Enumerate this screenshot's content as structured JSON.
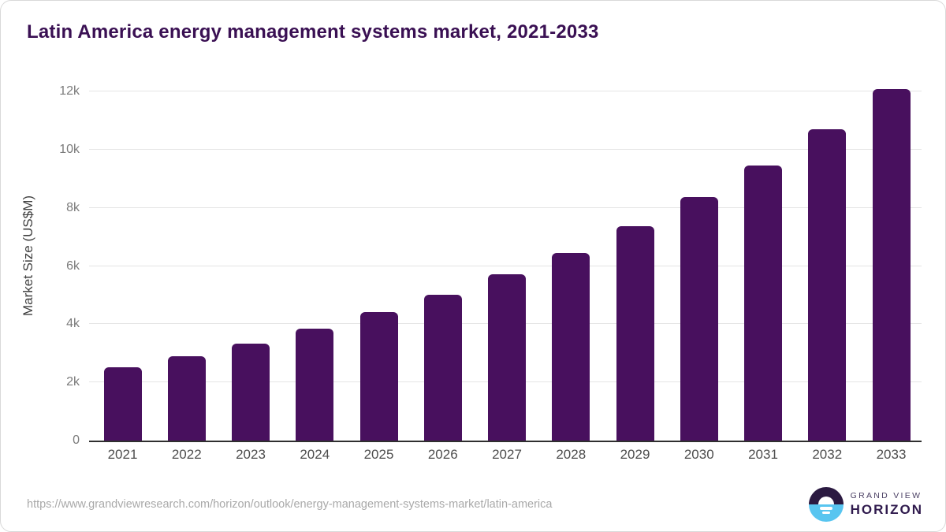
{
  "title": "Latin America energy management systems market, 2021-2033",
  "chart_data": {
    "type": "bar",
    "title": "Latin America energy management systems market, 2021-2033",
    "categories": [
      "2021",
      "2022",
      "2023",
      "2024",
      "2025",
      "2026",
      "2027",
      "2028",
      "2029",
      "2030",
      "2031",
      "2032",
      "2033"
    ],
    "values": [
      2520,
      2900,
      3330,
      3850,
      4420,
      5010,
      5720,
      6450,
      7370,
      8370,
      9470,
      10700,
      12100
    ],
    "xlabel": "",
    "ylabel": "Market Size (US$M)",
    "ylim": [
      0,
      12400
    ],
    "yticks": [
      0,
      2000,
      4000,
      6000,
      8000,
      10000,
      12000
    ],
    "ytick_labels": [
      "0",
      "2k",
      "4k",
      "6k",
      "8k",
      "10k",
      "12k"
    ],
    "grid": true,
    "legend": "none",
    "bar_color": "#48105e"
  },
  "colors": {
    "title_text": "#3a1053",
    "bar_fill": "#48105e",
    "axis_line": "#2f2f2f",
    "gridline": "#e5e5e5",
    "y_tick_text": "#7b7b7b",
    "x_tick_text": "#4d4d4d",
    "source_url_text": "#a9a9a9",
    "logo_dark": "#2b1a41",
    "logo_blue": "#58c5f0"
  },
  "footer": {
    "source_url": "https://www.grandviewresearch.com/horizon/outlook/energy-management-systems-market/latin-america",
    "logo": {
      "line1": "GRAND VIEW",
      "line2": "HORIZON"
    }
  }
}
